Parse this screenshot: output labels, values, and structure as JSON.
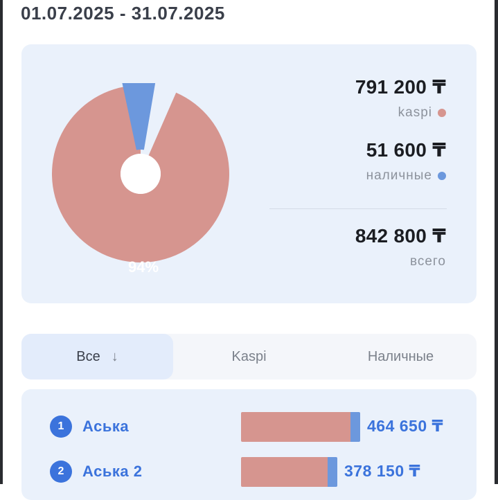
{
  "period": {
    "label": "01.07.2025 - 31.07.2025"
  },
  "summary": {
    "kaspi": {
      "amount": "791 200 ₸",
      "label": "kaspi",
      "color": "#d6958f",
      "share": 0.94
    },
    "cash": {
      "amount": "51 600 ₸",
      "label": "наличные",
      "color": "#6c98dd",
      "share": 0.06
    },
    "total": {
      "amount": "842 800 ₸",
      "label": "всего"
    },
    "donut_label": "94%"
  },
  "filters": {
    "tabs": [
      {
        "label": "Все",
        "active": true,
        "icon": "arrow-down-icon"
      },
      {
        "label": "Kaspi",
        "active": false
      },
      {
        "label": "Наличные",
        "active": false
      }
    ],
    "sort_arrow": "↓"
  },
  "ranking": {
    "rows": [
      {
        "rank": "1",
        "name": "Аська",
        "amount": "464 650 ₸",
        "fraction": 1.0
      },
      {
        "rank": "2",
        "name": "Аська 2",
        "amount": "378 150 ₸",
        "fraction": 0.81
      }
    ]
  }
}
